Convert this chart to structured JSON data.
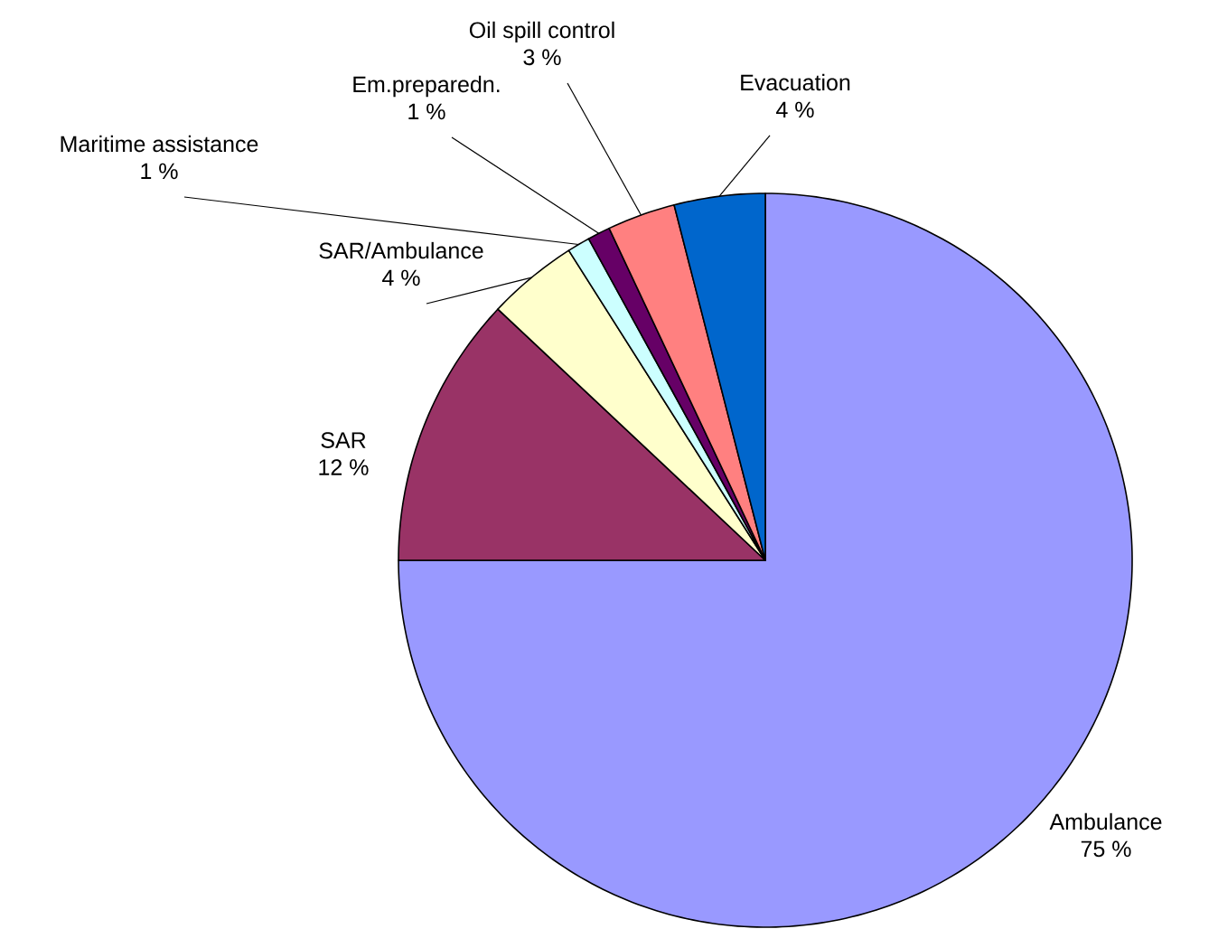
{
  "chart_data": {
    "type": "pie",
    "categories": [
      "Ambulance",
      "SAR",
      "SAR/Ambulance",
      "Maritime assistance",
      "Em.preparedn.",
      "Oil spill control",
      "Evacuation"
    ],
    "values": [
      75,
      12,
      4,
      1,
      1,
      3,
      4
    ],
    "value_labels": [
      "75 %",
      "12 %",
      "4 %",
      "1 %",
      "1 %",
      "3 %",
      "4 %"
    ],
    "colors": [
      "#9999ff",
      "#993366",
      "#ffffcc",
      "#ccffff",
      "#660066",
      "#ff8080",
      "#0066cc"
    ]
  }
}
